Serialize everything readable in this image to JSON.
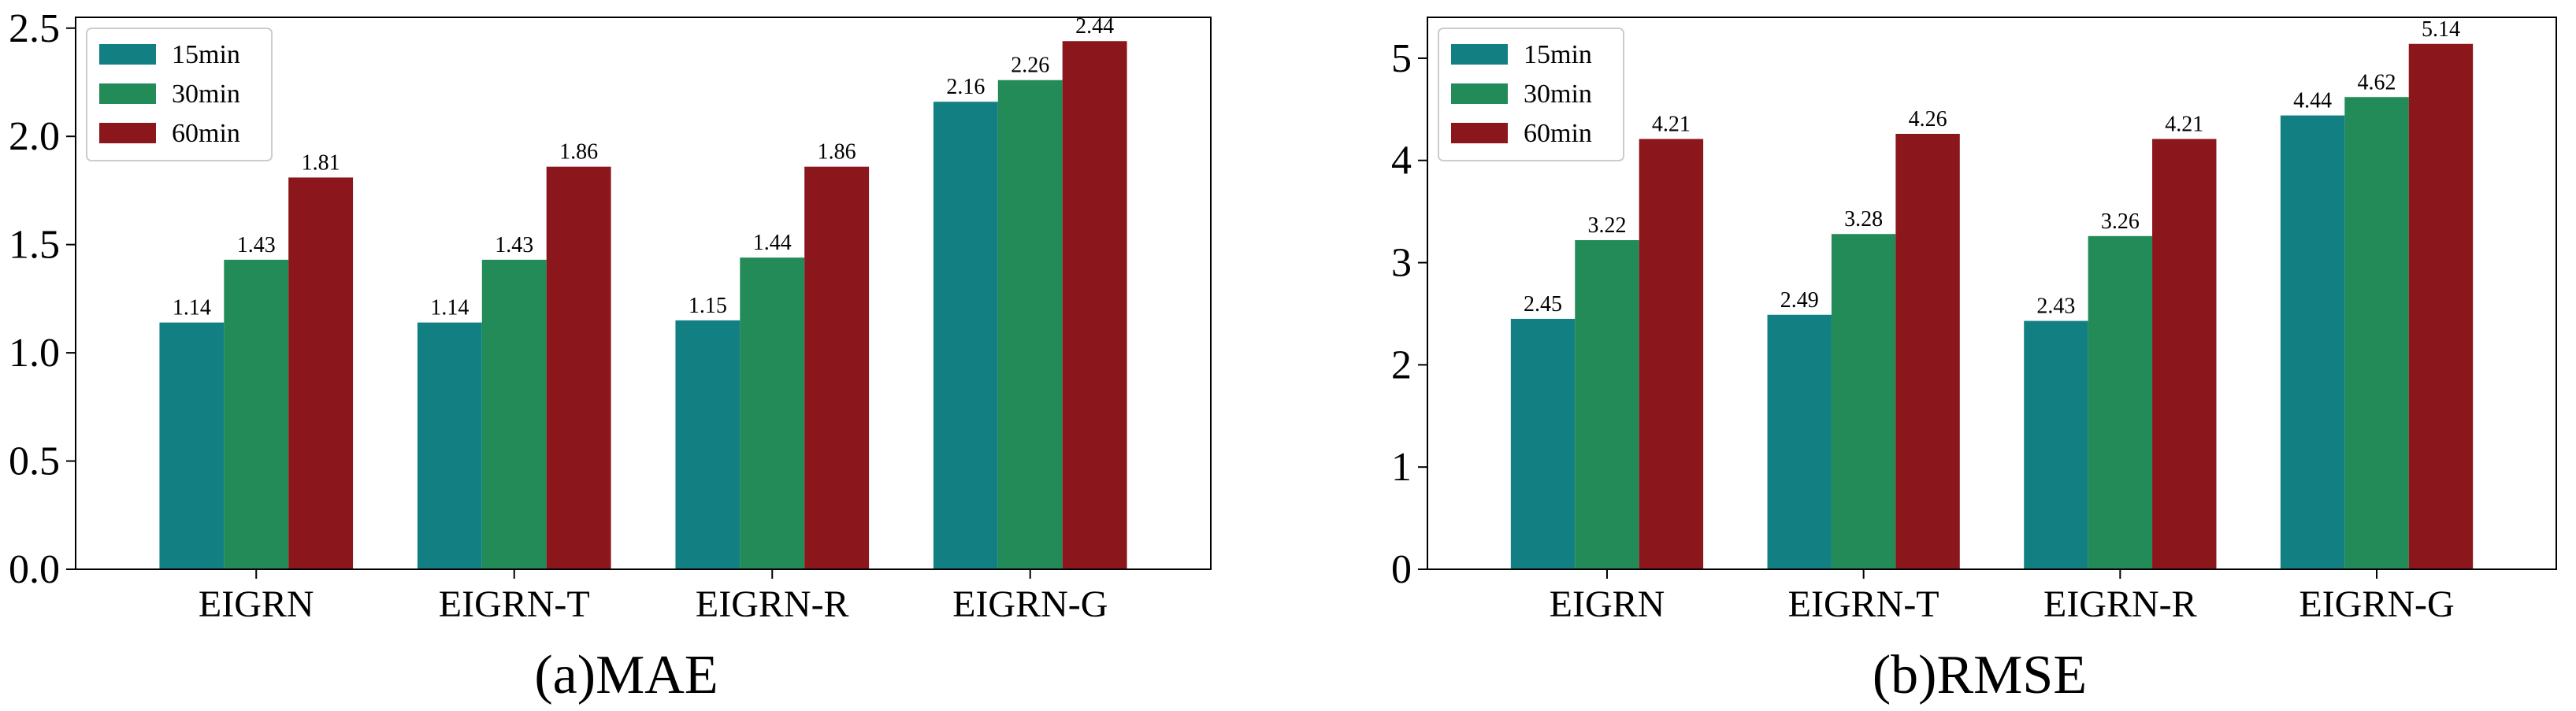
{
  "colors": {
    "15min": "#127f82",
    "30min": "#238b57",
    "60min": "#8b161b"
  },
  "chart_data": [
    {
      "type": "bar",
      "title": "(a)MAE",
      "xlabel": "",
      "ylabel": "",
      "categories": [
        "EIGRN",
        "EIGRN-T",
        "EIGRN-R",
        "EIGRN-G"
      ],
      "series": [
        {
          "name": "15min",
          "values": [
            1.14,
            1.14,
            1.15,
            2.16
          ]
        },
        {
          "name": "30min",
          "values": [
            1.43,
            1.43,
            1.44,
            2.26
          ]
        },
        {
          "name": "60min",
          "values": [
            1.81,
            1.86,
            1.86,
            2.44
          ]
        }
      ],
      "ylim": [
        0,
        2.55
      ],
      "yticks": [
        "0.0",
        "0.5",
        "1.0",
        "1.5",
        "2.0",
        "2.5"
      ],
      "legend": "top-left",
      "grid": false
    },
    {
      "type": "bar",
      "title": "(b)RMSE",
      "xlabel": "",
      "ylabel": "",
      "categories": [
        "EIGRN",
        "EIGRN-T",
        "EIGRN-R",
        "EIGRN-G"
      ],
      "series": [
        {
          "name": "15min",
          "values": [
            2.45,
            2.49,
            2.43,
            4.44
          ]
        },
        {
          "name": "30min",
          "values": [
            3.22,
            3.28,
            3.26,
            4.62
          ]
        },
        {
          "name": "60min",
          "values": [
            4.21,
            4.26,
            4.21,
            5.14
          ]
        }
      ],
      "ylim": [
        0,
        5.4
      ],
      "yticks": [
        "0",
        "1",
        "2",
        "3",
        "4",
        "5"
      ],
      "legend": "top-left",
      "grid": false
    }
  ]
}
